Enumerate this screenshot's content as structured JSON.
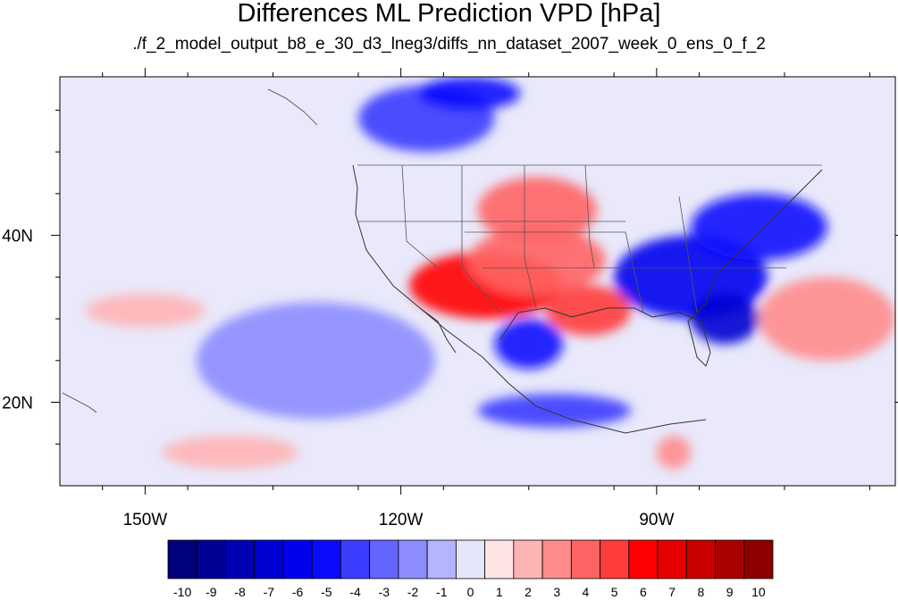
{
  "title": "Differences ML Prediction VPD [hPa]",
  "subtitle": "./f_2_model_output_b8_e_30_d3_lneg3/diffs_nn_dataset_2007_week_0_ens_0_f_2",
  "map": {
    "lon_range": [
      -160,
      -62
    ],
    "lat_range": [
      10,
      59
    ],
    "lon_ticks": [
      {
        "value": -150,
        "label": "150W"
      },
      {
        "value": -120,
        "label": "120W"
      },
      {
        "value": -90,
        "label": "90W"
      }
    ],
    "lat_ticks": [
      {
        "value": 40,
        "label": "40N"
      },
      {
        "value": 20,
        "label": "20N"
      }
    ]
  },
  "colorbar": {
    "labels": [
      "-10",
      "-9",
      "-8",
      "-7",
      "-6",
      "-5",
      "-4",
      "-3",
      "-2",
      "-1",
      "0",
      "1",
      "2",
      "3",
      "4",
      "5",
      "6",
      "7",
      "8",
      "9",
      "10"
    ],
    "colors": [
      "#00007a",
      "#000096",
      "#0000b4",
      "#0000d2",
      "#0000f0",
      "#0a0aff",
      "#3c3cff",
      "#6464ff",
      "#8c8cff",
      "#b4b4ff",
      "#e6e6fa",
      "#ffe4e4",
      "#ffb4b4",
      "#ff8c8c",
      "#ff6464",
      "#ff3c3c",
      "#ff0000",
      "#e60000",
      "#c80000",
      "#aa0000",
      "#8c0000"
    ]
  },
  "anomalies": [
    {
      "lon": -110,
      "lat": 34,
      "value": 6,
      "rx": 9,
      "ry": 4
    },
    {
      "lon": -104,
      "lat": 37,
      "value": 4,
      "rx": 8,
      "ry": 4
    },
    {
      "lon": -104,
      "lat": 43,
      "value": 4,
      "rx": 7,
      "ry": 4
    },
    {
      "lon": -98,
      "lat": 31,
      "value": 5,
      "rx": 5,
      "ry": 3
    },
    {
      "lon": -86,
      "lat": 35,
      "value": -6,
      "rx": 9,
      "ry": 5
    },
    {
      "lon": -78,
      "lat": 41,
      "value": -5,
      "rx": 8,
      "ry": 4
    },
    {
      "lon": -82,
      "lat": 30,
      "value": -7,
      "rx": 4,
      "ry": 3
    },
    {
      "lon": -117,
      "lat": 54,
      "value": -4,
      "rx": 8,
      "ry": 4
    },
    {
      "lon": -112,
      "lat": 57,
      "value": -5,
      "rx": 6,
      "ry": 2
    },
    {
      "lon": -105,
      "lat": 27,
      "value": -5,
      "rx": 4,
      "ry": 3
    },
    {
      "lon": -102,
      "lat": 19,
      "value": -4,
      "rx": 9,
      "ry": 2
    },
    {
      "lon": -70,
      "lat": 30,
      "value": 3,
      "rx": 8,
      "ry": 5
    },
    {
      "lon": -130,
      "lat": 25,
      "value": -2,
      "rx": 14,
      "ry": 7
    },
    {
      "lon": -150,
      "lat": 31,
      "value": 2,
      "rx": 7,
      "ry": 2
    },
    {
      "lon": -140,
      "lat": 14,
      "value": 2,
      "rx": 8,
      "ry": 2
    },
    {
      "lon": -88,
      "lat": 14,
      "value": 3,
      "rx": 2,
      "ry": 2
    }
  ]
}
